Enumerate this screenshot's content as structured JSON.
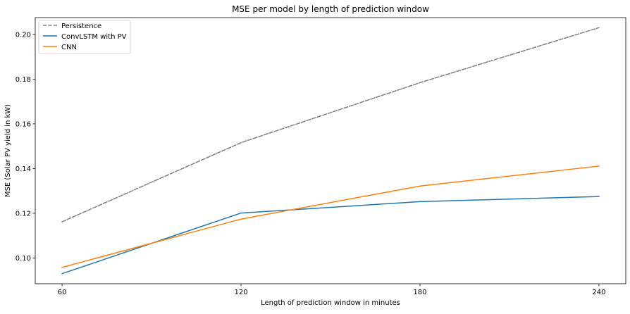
{
  "chart_data": {
    "type": "line",
    "title": "MSE per model by length of prediction window",
    "xlabel": "Length of prediction window in minutes",
    "ylabel": "MSE (Solar PV yield in kW)",
    "x": [
      60,
      120,
      180,
      240
    ],
    "x_tick_labels": [
      "60",
      "120",
      "180",
      "240"
    ],
    "xlim": [
      51,
      249
    ],
    "ylim": [
      0.0885,
      0.2075
    ],
    "y_ticks": [
      0.1,
      0.12,
      0.14,
      0.16,
      0.18,
      0.2
    ],
    "y_tick_labels": [
      "0.10",
      "0.12",
      "0.14",
      "0.16",
      "0.18",
      "0.20"
    ],
    "grid": false,
    "legend_position": "top-left",
    "series": [
      {
        "name": "Persistence",
        "values": [
          0.1162,
          0.1516,
          0.1784,
          0.203
        ],
        "color": "#808080",
        "dashed": true
      },
      {
        "name": "ConvLSTM with PV",
        "values": [
          0.093,
          0.1201,
          0.1252,
          0.1275
        ],
        "color": "#1f77b4",
        "dashed": false
      },
      {
        "name": "CNN",
        "values": [
          0.0958,
          0.1174,
          0.1322,
          0.1411
        ],
        "color": "#ff7f0e",
        "dashed": false
      }
    ]
  }
}
